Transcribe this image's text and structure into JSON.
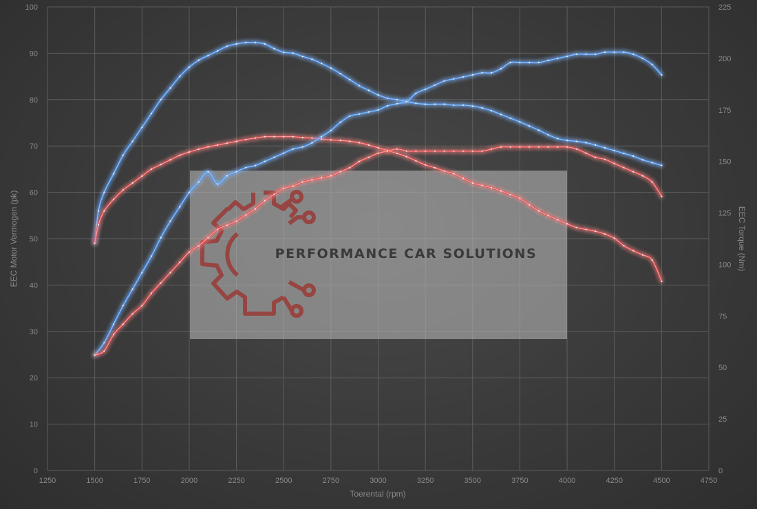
{
  "chart_data": {
    "type": "line",
    "xlabel": "Toerental (rpm)",
    "ylabel_left": "EEC Motor Vermogen (pk)",
    "ylabel_right": "EEC Torque (Nm)",
    "xlim": [
      1250,
      4750
    ],
    "ylim_left": [
      0,
      100
    ],
    "ylim_right": [
      0,
      225
    ],
    "x_ticks": [
      "1250",
      "1500",
      "1750",
      "2000",
      "2250",
      "2500",
      "2750",
      "3000",
      "3250",
      "3500",
      "3750",
      "4000",
      "4250",
      "4500",
      "4750"
    ],
    "y_ticks_left": [
      "0",
      "10",
      "20",
      "30",
      "40",
      "50",
      "60",
      "70",
      "80",
      "90",
      "100"
    ],
    "y_ticks_right": [
      "0",
      "25",
      "50",
      "75",
      "100",
      "125",
      "150",
      "175",
      "200",
      "225"
    ],
    "grid": true,
    "series": [
      {
        "axis": "left",
        "color": "#3d8ef0",
        "x": [
          1500,
          1520,
          1550,
          1600,
          1650,
          1700,
          1750,
          1800,
          1850,
          1900,
          1950,
          2000,
          2050,
          2100,
          2150,
          2200,
          2250,
          2300,
          2350,
          2400,
          2450,
          2500,
          2550,
          2600,
          2650,
          2700,
          2750,
          2800,
          2850,
          2900,
          2950,
          3000,
          3050,
          3100,
          3150,
          3200,
          3250,
          3300,
          3350,
          3400,
          3450,
          3500,
          3550,
          3600,
          3650,
          3700,
          3750,
          3800,
          3850,
          3900,
          3950,
          4000,
          4050,
          4100,
          4150,
          4200,
          4250,
          4300,
          4350,
          4400,
          4450,
          4500
        ],
        "y": [
          49,
          56,
          60,
          64,
          68,
          71,
          74,
          77,
          80,
          82.5,
          85,
          87,
          88.5,
          89.5,
          90.5,
          91.5,
          92,
          92.3,
          92.3,
          92,
          91,
          90.2,
          90,
          89.3,
          88.7,
          87.8,
          86.8,
          85.6,
          84.3,
          83,
          82,
          81,
          80.3,
          80,
          79.6,
          79.2,
          79,
          79,
          79,
          78.8,
          78.8,
          78.6,
          78.2,
          77.6,
          76.8,
          76,
          75.2,
          74.3,
          73.4,
          72.4,
          71.6,
          71.2,
          71,
          70.7,
          70.2,
          69.6,
          69,
          68.4,
          67.8,
          67,
          66.4,
          65.8
        ]
      },
      {
        "axis": "left",
        "color": "#e83030",
        "x": [
          1500,
          1520,
          1550,
          1600,
          1650,
          1700,
          1750,
          1800,
          1850,
          1900,
          1950,
          2000,
          2050,
          2100,
          2150,
          2200,
          2250,
          2300,
          2350,
          2400,
          2450,
          2500,
          2550,
          2600,
          2650,
          2700,
          2750,
          2800,
          2850,
          2900,
          2950,
          3000,
          3050,
          3100,
          3150,
          3200,
          3250,
          3300,
          3350,
          3400,
          3450,
          3500,
          3550,
          3600,
          3650,
          3700,
          3750,
          3800,
          3850,
          3900,
          3950,
          4000,
          4050,
          4100,
          4150,
          4200,
          4250,
          4300,
          4350,
          4400,
          4450,
          4500
        ],
        "y": [
          49,
          53,
          56,
          58.5,
          60.5,
          62,
          63.5,
          65,
          66,
          67,
          68,
          68.7,
          69.3,
          69.8,
          70.2,
          70.6,
          71,
          71.4,
          71.7,
          72,
          72,
          72,
          72,
          71.8,
          71.7,
          71.5,
          71.3,
          71.2,
          71,
          70.7,
          70.2,
          69.6,
          69,
          68.4,
          67.7,
          66.8,
          65.9,
          65.3,
          64.6,
          64,
          63,
          62,
          61.5,
          61,
          60.3,
          59.5,
          58.7,
          57.3,
          56,
          55,
          54.1,
          53.2,
          52.4,
          52,
          51.6,
          51,
          50.1,
          48.5,
          47.4,
          46.5,
          45.4,
          40.8
        ]
      },
      {
        "axis": "right",
        "color": "#3d8ef0",
        "x": [
          1500,
          1550,
          1600,
          1650,
          1700,
          1750,
          1800,
          1850,
          1900,
          1950,
          2000,
          2050,
          2100,
          2150,
          2200,
          2250,
          2300,
          2350,
          2400,
          2450,
          2500,
          2550,
          2600,
          2650,
          2700,
          2750,
          2800,
          2850,
          2900,
          2950,
          3000,
          3050,
          3100,
          3150,
          3200,
          3250,
          3300,
          3350,
          3400,
          3450,
          3500,
          3550,
          3600,
          3650,
          3700,
          3750,
          3800,
          3850,
          3900,
          3950,
          4000,
          4050,
          4100,
          4150,
          4200,
          4250,
          4300,
          4350,
          4400,
          4450,
          4500
        ],
        "y": [
          56,
          62,
          71,
          80,
          88,
          96,
          104,
          113,
          121,
          128,
          135,
          140,
          145,
          139,
          143,
          145,
          147,
          148,
          150,
          152,
          154,
          156,
          157,
          159,
          162,
          165,
          169,
          172,
          173,
          174,
          175,
          177,
          178,
          179,
          183,
          185,
          187,
          189,
          190,
          191,
          192,
          193,
          193,
          195,
          198,
          198,
          198,
          198,
          199,
          200,
          201,
          202,
          202,
          202,
          203,
          203,
          203,
          202,
          200,
          197,
          192
        ]
      },
      {
        "axis": "right",
        "color": "#e83030",
        "x": [
          1500,
          1550,
          1600,
          1650,
          1700,
          1750,
          1800,
          1850,
          1900,
          1950,
          2000,
          2050,
          2100,
          2150,
          2200,
          2250,
          2300,
          2350,
          2400,
          2450,
          2500,
          2550,
          2600,
          2650,
          2700,
          2750,
          2800,
          2850,
          2900,
          2950,
          3000,
          3050,
          3100,
          3150,
          3200,
          3250,
          3300,
          3350,
          3400,
          3450,
          3500,
          3550,
          3600,
          3650,
          3700,
          3750,
          3800,
          3850,
          3900,
          3950,
          4000,
          4050,
          4100,
          4150,
          4200,
          4250,
          4300,
          4350,
          4400,
          4450,
          4500
        ],
        "y": [
          56,
          58,
          66,
          71,
          76,
          80,
          86,
          91,
          96,
          101,
          106,
          109,
          113,
          117,
          119,
          121,
          124,
          127,
          131,
          134,
          137,
          138,
          140,
          141,
          142,
          143,
          145,
          147,
          150,
          152,
          154,
          155,
          156,
          155,
          155,
          155,
          155,
          155,
          155,
          155,
          155,
          155,
          156,
          157,
          157,
          157,
          157,
          157,
          157,
          157,
          157,
          156,
          154,
          152,
          151,
          149,
          147,
          145,
          143,
          140,
          133
        ]
      }
    ],
    "watermark": {
      "text": "PERFORMANCE CAR SOLUTIONS",
      "icon": "gear-circuit-icon"
    }
  }
}
